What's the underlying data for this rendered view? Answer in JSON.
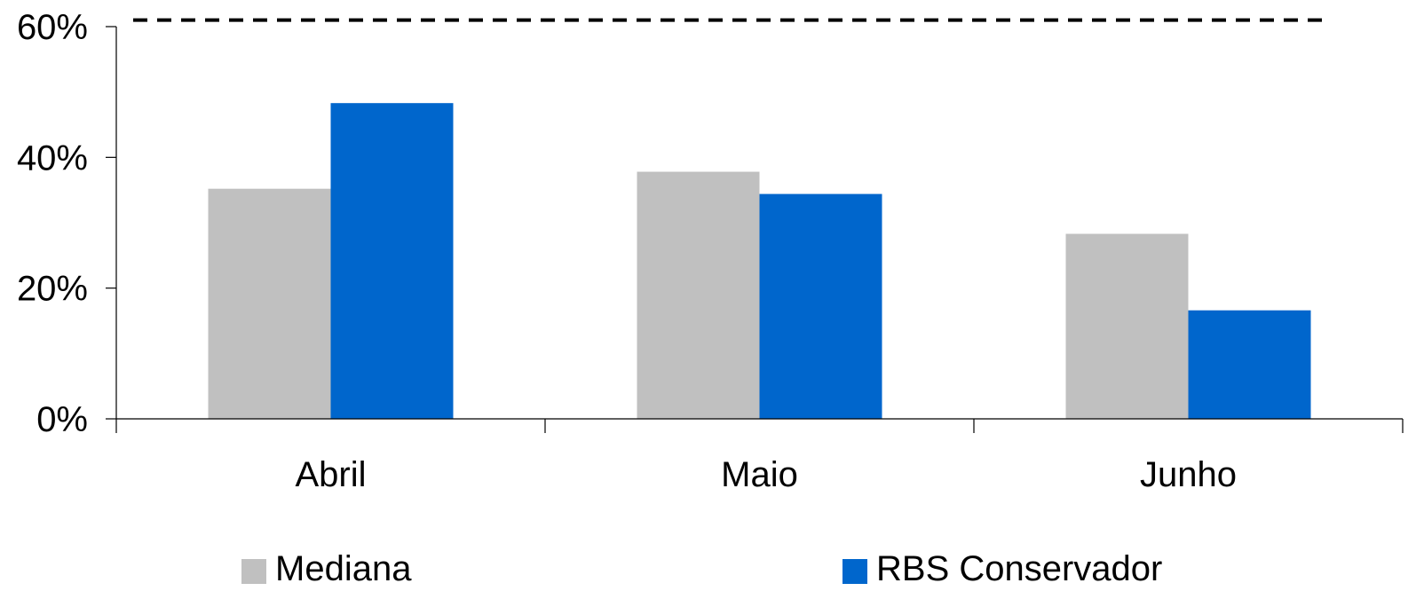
{
  "chart_data": {
    "type": "bar",
    "categories": [
      "Abril",
      "Maio",
      "Junho"
    ],
    "series": [
      {
        "name": "Mediana",
        "values": [
          35.2,
          37.8,
          28.3
        ],
        "color": "#c0c0c0"
      },
      {
        "name": "RBS Conservador",
        "values": [
          48.3,
          34.4,
          16.6
        ],
        "color": "#0066cc"
      }
    ],
    "reference_line": {
      "value": 61,
      "style": "dashed",
      "color": "#000000"
    },
    "ylim": [
      0,
      60
    ],
    "yticks": [
      "0%",
      "20%",
      "40%",
      "60%"
    ],
    "ytick_values": [
      0,
      20,
      40,
      60
    ],
    "grid": false,
    "legend_position": "bottom",
    "title": "",
    "xlabel": "",
    "ylabel": ""
  }
}
